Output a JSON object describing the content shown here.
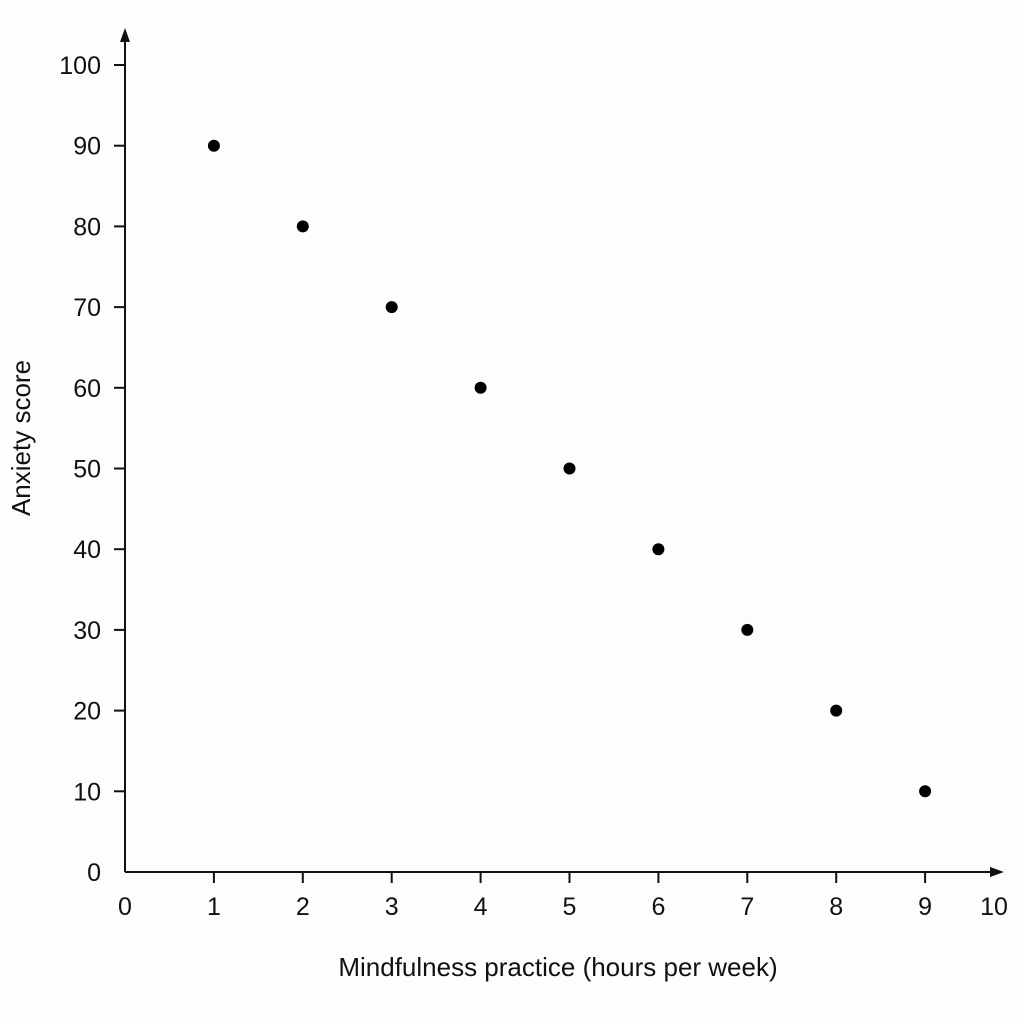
{
  "chart_data": {
    "type": "scatter",
    "title": "",
    "xlabel": "Mindfulness practice (hours per week)",
    "ylabel": "Anxiety score",
    "xlim": [
      0,
      10
    ],
    "ylim": [
      0,
      100
    ],
    "x_ticks": [
      0,
      1,
      2,
      3,
      4,
      5,
      6,
      7,
      8,
      9,
      10
    ],
    "y_ticks": [
      0,
      10,
      20,
      30,
      40,
      50,
      60,
      70,
      80,
      90,
      100
    ],
    "grid": false,
    "legend": "none",
    "point_color": "#000000",
    "series": [
      {
        "x": [
          1,
          2,
          3,
          4,
          5,
          6,
          7,
          8,
          9
        ],
        "y": [
          90,
          80,
          70,
          60,
          50,
          40,
          30,
          20,
          10
        ]
      }
    ]
  }
}
